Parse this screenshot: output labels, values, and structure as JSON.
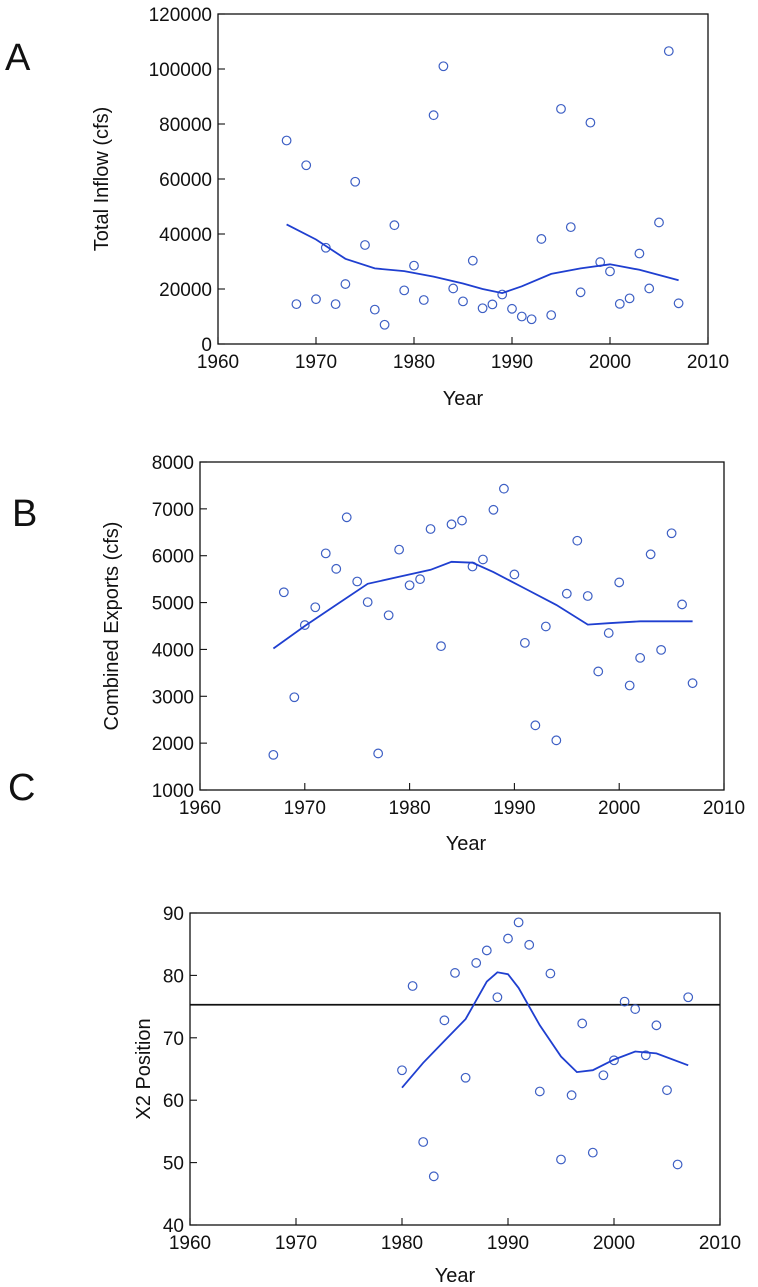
{
  "colors": {
    "points": "#3d5fc4",
    "trend": "#1f3fd0",
    "reference": "#111111",
    "axes": "#111111"
  },
  "chart_data": [
    {
      "type": "scatter",
      "panel": "A",
      "xlabel": "Year",
      "ylabel": "Total Inflow (cfs)",
      "xlim": [
        1960,
        2010
      ],
      "ylim": [
        0,
        120000
      ],
      "xticks": [
        "1960",
        "1970",
        "1980",
        "1990",
        "2000",
        "2010"
      ],
      "yticks": [
        "0",
        "20000",
        "40000",
        "60000",
        "80000",
        "100000",
        "120000"
      ],
      "points": [
        [
          1967,
          74000
        ],
        [
          1968,
          14500
        ],
        [
          1969,
          65000
        ],
        [
          1970,
          16300
        ],
        [
          1971,
          35000
        ],
        [
          1972,
          14500
        ],
        [
          1973,
          21800
        ],
        [
          1974,
          59000
        ],
        [
          1975,
          36000
        ],
        [
          1976,
          12500
        ],
        [
          1977,
          7000
        ],
        [
          1978,
          43200
        ],
        [
          1979,
          19500
        ],
        [
          1980,
          28500
        ],
        [
          1981,
          16000
        ],
        [
          1982,
          83200
        ],
        [
          1983,
          101000
        ],
        [
          1984,
          20200
        ],
        [
          1985,
          15500
        ],
        [
          1986,
          30300
        ],
        [
          1987,
          13000
        ],
        [
          1988,
          14400
        ],
        [
          1989,
          18000
        ],
        [
          1990,
          12800
        ],
        [
          1991,
          10000
        ],
        [
          1992,
          9000
        ],
        [
          1993,
          38200
        ],
        [
          1994,
          10500
        ],
        [
          1995,
          85500
        ],
        [
          1996,
          42500
        ],
        [
          1997,
          18800
        ],
        [
          1998,
          80500
        ],
        [
          1999,
          29800
        ],
        [
          2000,
          26400
        ],
        [
          2001,
          14600
        ],
        [
          2002,
          16600
        ],
        [
          2003,
          32900
        ],
        [
          2004,
          20200
        ],
        [
          2005,
          44200
        ],
        [
          2006,
          106500
        ],
        [
          2007,
          14800
        ]
      ],
      "trend": [
        [
          1967,
          43500
        ],
        [
          1970,
          38000
        ],
        [
          1973,
          31000
        ],
        [
          1976,
          27500
        ],
        [
          1979,
          26500
        ],
        [
          1982,
          24500
        ],
        [
          1985,
          22000
        ],
        [
          1987,
          20000
        ],
        [
          1989,
          18500
        ],
        [
          1991,
          21000
        ],
        [
          1994,
          25500
        ],
        [
          1997,
          27500
        ],
        [
          2000,
          29000
        ],
        [
          2003,
          27000
        ],
        [
          2007,
          23200
        ]
      ],
      "grid": false
    },
    {
      "type": "scatter",
      "panel": "B",
      "xlabel": "Year",
      "ylabel": "Combined Exports (cfs)",
      "xlim": [
        1960,
        2010
      ],
      "ylim": [
        1000,
        8000
      ],
      "xticks": [
        "1960",
        "1970",
        "1980",
        "1990",
        "2000",
        "2010"
      ],
      "yticks": [
        "1000",
        "2000",
        "3000",
        "4000",
        "5000",
        "6000",
        "7000",
        "8000"
      ],
      "points": [
        [
          1967,
          1750
        ],
        [
          1968,
          5220
        ],
        [
          1969,
          2980
        ],
        [
          1970,
          4520
        ],
        [
          1971,
          4900
        ],
        [
          1972,
          6050
        ],
        [
          1973,
          5720
        ],
        [
          1974,
          6820
        ],
        [
          1975,
          5450
        ],
        [
          1976,
          5010
        ],
        [
          1977,
          1780
        ],
        [
          1978,
          4730
        ],
        [
          1979,
          6130
        ],
        [
          1980,
          5370
        ],
        [
          1981,
          5500
        ],
        [
          1982,
          6570
        ],
        [
          1983,
          4070
        ],
        [
          1984,
          6670
        ],
        [
          1985,
          6750
        ],
        [
          1986,
          5770
        ],
        [
          1987,
          5920
        ],
        [
          1988,
          6980
        ],
        [
          1989,
          7430
        ],
        [
          1990,
          5600
        ],
        [
          1991,
          4140
        ],
        [
          1992,
          2380
        ],
        [
          1993,
          4490
        ],
        [
          1994,
          2060
        ],
        [
          1995,
          5190
        ],
        [
          1996,
          6320
        ],
        [
          1997,
          5140
        ],
        [
          1998,
          3530
        ],
        [
          1999,
          4350
        ],
        [
          2000,
          5430
        ],
        [
          2001,
          3230
        ],
        [
          2002,
          3820
        ],
        [
          2003,
          6030
        ],
        [
          2004,
          3990
        ],
        [
          2005,
          6480
        ],
        [
          2006,
          4960
        ],
        [
          2007,
          3280
        ]
      ],
      "trend": [
        [
          1967,
          4020
        ],
        [
          1970,
          4500
        ],
        [
          1973,
          4950
        ],
        [
          1976,
          5400
        ],
        [
          1979,
          5550
        ],
        [
          1982,
          5700
        ],
        [
          1984,
          5870
        ],
        [
          1986,
          5850
        ],
        [
          1988,
          5650
        ],
        [
          1991,
          5300
        ],
        [
          1994,
          4950
        ],
        [
          1997,
          4530
        ],
        [
          1999,
          4560
        ],
        [
          2002,
          4600
        ],
        [
          2007,
          4600
        ]
      ],
      "grid": false
    },
    {
      "type": "scatter",
      "panel": "C",
      "xlabel": "Year",
      "ylabel": "X2 Position",
      "xlim": [
        1960,
        2010
      ],
      "ylim": [
        40,
        90
      ],
      "xticks": [
        "1960",
        "1970",
        "1980",
        "1990",
        "2000",
        "2010"
      ],
      "yticks": [
        "40",
        "50",
        "60",
        "70",
        "80",
        "90"
      ],
      "points": [
        [
          1980,
          64.8
        ],
        [
          1981,
          78.3
        ],
        [
          1982,
          53.3
        ],
        [
          1983,
          47.8
        ],
        [
          1984,
          72.8
        ],
        [
          1985,
          80.4
        ],
        [
          1986,
          63.6
        ],
        [
          1987,
          82.0
        ],
        [
          1988,
          84.0
        ],
        [
          1989,
          76.5
        ],
        [
          1990,
          85.9
        ],
        [
          1991,
          88.5
        ],
        [
          1992,
          84.9
        ],
        [
          1993,
          61.4
        ],
        [
          1994,
          80.3
        ],
        [
          1995,
          50.5
        ],
        [
          1996,
          60.8
        ],
        [
          1997,
          72.3
        ],
        [
          1998,
          51.6
        ],
        [
          1999,
          64.0
        ],
        [
          2000,
          66.4
        ],
        [
          2001,
          75.8
        ],
        [
          2002,
          74.6
        ],
        [
          2003,
          67.2
        ],
        [
          2004,
          72.0
        ],
        [
          2005,
          61.6
        ],
        [
          2006,
          49.7
        ],
        [
          2007,
          76.5
        ]
      ],
      "trend": [
        [
          1980,
          62.0
        ],
        [
          1982,
          66.0
        ],
        [
          1984,
          69.5
        ],
        [
          1986,
          73.0
        ],
        [
          1988,
          79.0
        ],
        [
          1989,
          80.5
        ],
        [
          1990,
          80.2
        ],
        [
          1991,
          78.0
        ],
        [
          1993,
          72.0
        ],
        [
          1995,
          67.0
        ],
        [
          1996.5,
          64.5
        ],
        [
          1998,
          64.8
        ],
        [
          2000,
          66.5
        ],
        [
          2002,
          67.8
        ],
        [
          2004,
          67.5
        ],
        [
          2007,
          65.6
        ]
      ],
      "hline": 75.3,
      "grid": false
    }
  ]
}
